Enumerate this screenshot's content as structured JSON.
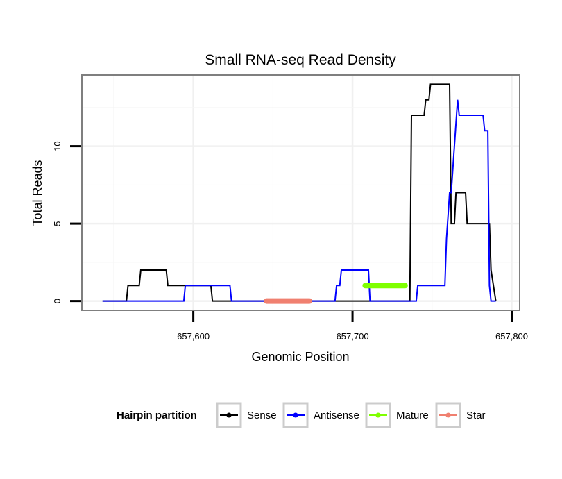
{
  "chart_data": {
    "type": "line",
    "title": "Small RNA-seq Read Density",
    "xlabel": "Genomic Position",
    "ylabel": "Total Reads",
    "xlim": [
      657530,
      657805
    ],
    "ylim": [
      -0.6,
      14.6
    ],
    "x_ticks": [
      657600,
      657700,
      657800
    ],
    "x_tick_labels": [
      "657,600",
      "657,700",
      "657,800"
    ],
    "y_ticks": [
      0,
      5,
      10
    ],
    "y_tick_labels": [
      "0",
      "5",
      "10"
    ],
    "grid": true,
    "legend": {
      "title": "Hairpin partition",
      "position": "bottom",
      "entries": [
        {
          "label": "Sense",
          "color": "#000000"
        },
        {
          "label": "Antisense",
          "color": "#0000ff"
        },
        {
          "label": "Mature",
          "color": "#7fff00"
        },
        {
          "label": "Star",
          "color": "#f08070"
        }
      ]
    },
    "series": [
      {
        "name": "Sense",
        "color": "#000000",
        "x": [
          657543,
          657558,
          657559,
          657566,
          657567,
          657583,
          657584,
          657598,
          657599,
          657611,
          657612,
          657736,
          657737,
          657745,
          657746,
          657748,
          657749,
          657761,
          657762,
          657764,
          657765,
          657771,
          657772,
          657786,
          657787,
          657790
        ],
        "y": [
          0,
          0,
          1,
          1,
          2,
          2,
          1,
          1,
          1,
          1,
          0,
          0,
          12,
          12,
          13,
          13,
          14,
          14,
          5,
          5,
          7,
          7,
          5,
          5,
          2,
          0
        ]
      },
      {
        "name": "Antisense",
        "color": "#0000ff",
        "x": [
          657543,
          657594,
          657595,
          657623,
          657624,
          657689,
          657690,
          657692,
          657693,
          657710,
          657711,
          657724,
          657725,
          657740,
          657741,
          657758,
          657759,
          657761,
          657762,
          657766,
          657767,
          657782,
          657783,
          657785,
          657786,
          657787,
          657790
        ],
        "y": [
          0,
          0,
          1,
          1,
          0,
          0,
          1,
          1,
          2,
          2,
          0,
          0,
          0,
          0,
          1,
          1,
          4,
          7,
          7,
          13,
          12,
          12,
          11,
          11,
          1,
          0,
          0
        ]
      },
      {
        "name": "Mature",
        "color": "#7fff00",
        "x": [
          657708,
          657733
        ],
        "y": [
          1,
          1
        ]
      },
      {
        "name": "Star",
        "color": "#f08070",
        "x": [
          657646,
          657673
        ],
        "y": [
          0,
          0
        ]
      }
    ]
  }
}
